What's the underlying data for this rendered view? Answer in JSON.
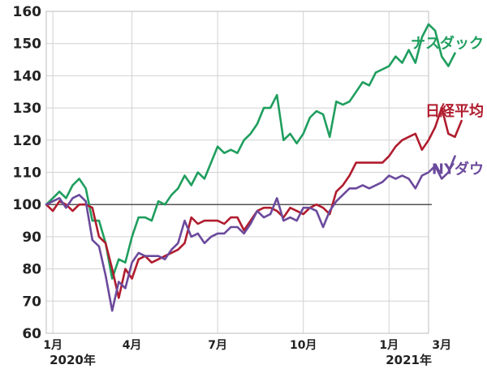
{
  "chart_data": {
    "type": "line",
    "ylim": [
      60,
      160
    ],
    "yticks": [
      60,
      70,
      80,
      90,
      100,
      110,
      120,
      130,
      140,
      150,
      160
    ],
    "grid": true,
    "reference_value": 100,
    "xrange": [
      0,
      58
    ],
    "x_ticks": [
      {
        "x": 1,
        "label": "1月"
      },
      {
        "x": 13,
        "label": "4月"
      },
      {
        "x": 26,
        "label": "7月"
      },
      {
        "x": 39,
        "label": "10月"
      },
      {
        "x": 52,
        "label": "1月"
      },
      {
        "x": 60,
        "label": "3月"
      }
    ],
    "year_labels": [
      {
        "x": 4,
        "label": "2020年"
      },
      {
        "x": 55,
        "label": "2021年"
      }
    ],
    "series": [
      {
        "name": "ナスダック",
        "color": "#1f9e5e",
        "label_y": 150,
        "values": [
          100,
          102,
          104,
          102,
          106,
          108,
          105,
          95,
          95,
          88,
          77,
          83,
          82,
          90,
          96,
          96,
          95,
          101,
          100,
          103,
          105,
          109,
          106,
          110,
          108,
          113,
          118,
          116,
          117,
          116,
          120,
          122,
          125,
          130,
          130,
          134,
          120,
          122,
          119,
          122,
          127,
          129,
          128,
          121,
          132,
          131,
          132,
          135,
          138,
          137,
          141,
          142,
          143,
          146,
          144,
          148,
          144,
          152,
          156,
          154,
          146,
          143,
          147
        ]
      },
      {
        "name": "日経平均",
        "color": "#b01c2e",
        "label_y": 129,
        "values": [
          100,
          98,
          101,
          100,
          98,
          100,
          100,
          99,
          90,
          88,
          80,
          71,
          80,
          77,
          83,
          84,
          82,
          83,
          84,
          85,
          86,
          88,
          96,
          94,
          95,
          95,
          95,
          94,
          96,
          96,
          92,
          95,
          98,
          99,
          99,
          98,
          96,
          99,
          98,
          97,
          99,
          100,
          99,
          97,
          104,
          106,
          109,
          113,
          113,
          113,
          113,
          113,
          115,
          118,
          120,
          121,
          122,
          117,
          120,
          124,
          130,
          122,
          121,
          126
        ]
      },
      {
        "name": "NYダウ",
        "color": "#6b4a9c",
        "label_y": 111,
        "values": [
          100,
          101,
          102,
          99,
          102,
          103,
          101,
          89,
          87,
          78,
          67,
          76,
          74,
          82,
          85,
          84,
          84,
          84,
          83,
          86,
          88,
          95,
          90,
          91,
          88,
          90,
          91,
          91,
          93,
          93,
          91,
          94,
          98,
          96,
          97,
          102,
          95,
          96,
          95,
          99,
          99,
          98,
          93,
          98,
          101,
          103,
          105,
          105,
          106,
          105,
          106,
          107,
          109,
          108,
          109,
          108,
          105,
          109,
          110,
          112,
          108,
          110,
          115
        ]
      }
    ]
  }
}
